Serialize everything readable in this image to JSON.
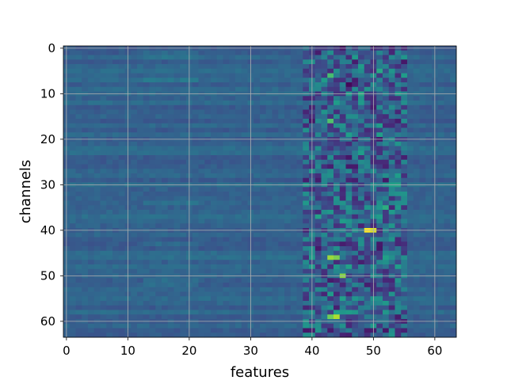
{
  "chart_data": {
    "type": "heatmap",
    "title": "",
    "xlabel": "features",
    "ylabel": "channels",
    "x_range": [
      0,
      64
    ],
    "y_range": [
      0,
      64
    ],
    "y_inverted": true,
    "grid": true,
    "colormap": "viridis",
    "xticks": [
      {
        "value": 0,
        "label": "0"
      },
      {
        "value": 10,
        "label": "10"
      },
      {
        "value": 20,
        "label": "20"
      },
      {
        "value": 30,
        "label": "30"
      },
      {
        "value": 40,
        "label": "40"
      },
      {
        "value": 50,
        "label": "50"
      },
      {
        "value": 60,
        "label": "60"
      }
    ],
    "yticks": [
      {
        "value": 0,
        "label": "0"
      },
      {
        "value": 10,
        "label": "10"
      },
      {
        "value": 20,
        "label": "20"
      },
      {
        "value": 30,
        "label": "30"
      },
      {
        "value": 40,
        "label": "40"
      },
      {
        "value": 50,
        "label": "50"
      },
      {
        "value": 60,
        "label": "60"
      }
    ],
    "background_value": 0.32,
    "active_band_features": [
      39,
      55
    ],
    "hotspots": [
      {
        "channel": 40,
        "feature": 49,
        "value": 1.0
      },
      {
        "channel": 40,
        "feature": 50,
        "value": 0.95
      },
      {
        "channel": 59,
        "feature": 44,
        "value": 0.88
      },
      {
        "channel": 59,
        "feature": 43,
        "value": 0.78
      },
      {
        "channel": 46,
        "feature": 43,
        "value": 0.85
      },
      {
        "channel": 46,
        "feature": 44,
        "value": 0.8
      },
      {
        "channel": 50,
        "feature": 45,
        "value": 0.82
      },
      {
        "channel": 16,
        "feature": 43,
        "value": 0.72
      },
      {
        "channel": 6,
        "feature": 43,
        "value": 0.7
      },
      {
        "channel": 10,
        "feature": 48,
        "value": 0.6
      },
      {
        "channel": 35,
        "feature": 52,
        "value": 0.62
      },
      {
        "channel": 5,
        "feature": 51,
        "value": 0.6
      },
      {
        "channel": 17,
        "feature": 51,
        "value": 0.55
      },
      {
        "channel": 8,
        "feature": 46,
        "value": 0.02
      },
      {
        "channel": 7,
        "feature": 47,
        "value": 0.08
      }
    ]
  },
  "colors": {
    "grid": "#b0b0b0",
    "frame": "#000000"
  }
}
